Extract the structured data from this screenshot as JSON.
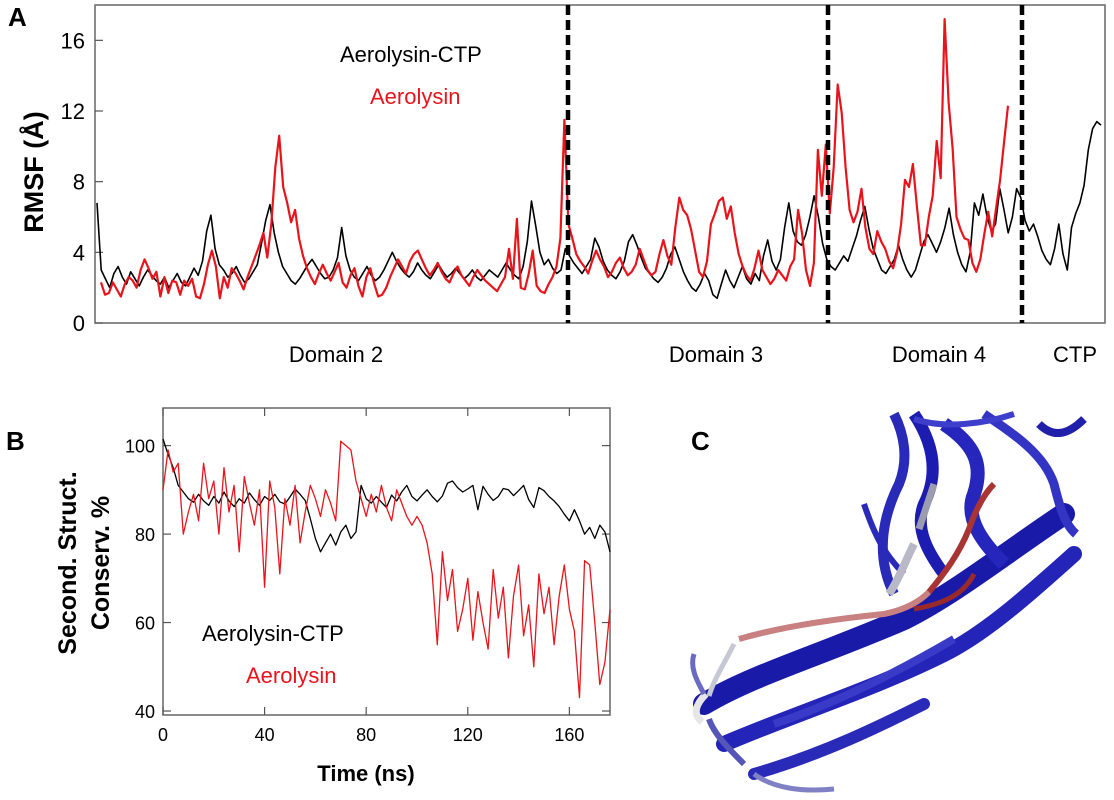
{
  "panels": {
    "a": "A",
    "b": "B",
    "c": "C"
  },
  "colors": {
    "aerolysin_ctp": "#000000",
    "aerolysin": "#e8141b"
  },
  "chart_data": [
    {
      "type": "line",
      "ylabel": "RMSF (Å)",
      "ylim": [
        0,
        18
      ],
      "yticks": [
        0,
        4,
        8,
        12,
        16
      ],
      "legend": [
        "Aerolysin-CTP",
        "Aerolysin"
      ],
      "regions": [
        "Domain 2",
        "Domain 3",
        "Domain 4",
        "CTP"
      ],
      "grid": false,
      "series": [
        {
          "name": "Aerolysin-CTP",
          "color": "#000000",
          "values": [
            6.8,
            3.0,
            2.5,
            2.0,
            2.8,
            3.2,
            2.6,
            2.2,
            2.9,
            2.5,
            2.1,
            2.6,
            3.0,
            2.7,
            2.4,
            2.2,
            2.6,
            2.0,
            2.4,
            2.8,
            2.3,
            2.1,
            2.6,
            3.1,
            2.7,
            3.5,
            5.2,
            6.1,
            4.2,
            3.3,
            3.0,
            2.6,
            2.8,
            3.2,
            2.7,
            2.3,
            2.5,
            2.9,
            3.3,
            4.5,
            5.8,
            6.7,
            5.1,
            4.0,
            3.2,
            2.8,
            2.4,
            2.2,
            2.5,
            2.9,
            3.3,
            3.6,
            3.2,
            2.8,
            2.5,
            2.6,
            3.0,
            3.7,
            5.4,
            3.8,
            3.0,
            2.6,
            2.4,
            2.8,
            3.2,
            2.7,
            2.4,
            2.6,
            3.0,
            3.5,
            4.0,
            3.5,
            3.1,
            2.8,
            2.6,
            2.9,
            3.4,
            3.0,
            2.7,
            2.5,
            2.9,
            3.3,
            2.9,
            2.6,
            2.8,
            3.1,
            2.8,
            2.5,
            2.7,
            3.0,
            2.6,
            2.4,
            2.7,
            3.0,
            2.8,
            2.6,
            3.0,
            3.4,
            3.0,
            2.7,
            2.5,
            3.2,
            4.6,
            6.9,
            5.5,
            4.0,
            3.3,
            3.6,
            3.1,
            2.8,
            3.0,
            4.2,
            3.8,
            3.4,
            3.1,
            2.8,
            3.2,
            3.6,
            4.8,
            4.3,
            3.5,
            3.0,
            2.7,
            2.5,
            2.9,
            3.5,
            4.6,
            5.0,
            4.4,
            3.7,
            3.1,
            2.8,
            2.5,
            2.3,
            2.6,
            3.1,
            3.9,
            4.3,
            3.6,
            2.9,
            2.4,
            2.0,
            1.8,
            2.2,
            2.8,
            2.4,
            1.6,
            1.4,
            2.2,
            3.0,
            2.4,
            2.0,
            2.6,
            3.2,
            2.5,
            2.2,
            2.8,
            2.4,
            3.8,
            4.7,
            3.5,
            3.0,
            3.6,
            5.4,
            6.8,
            5.2,
            4.6,
            4.4,
            5.0,
            6.0,
            7.2,
            6.0,
            4.5,
            3.6,
            3.2,
            3.0,
            3.4,
            3.8,
            3.5,
            4.2,
            4.9,
            5.8,
            6.6,
            5.3,
            4.2,
            3.6,
            3.0,
            2.8,
            3.2,
            3.6,
            4.4,
            3.6,
            3.0,
            2.6,
            3.0,
            3.8,
            4.6,
            5.0,
            4.5,
            4.0,
            4.6,
            5.4,
            6.5,
            5.0,
            4.0,
            3.3,
            2.9,
            4.0,
            6.8,
            6.1,
            7.3,
            6.0,
            5.2,
            5.6,
            7.6,
            6.4,
            5.1,
            6.0,
            7.6,
            7.1,
            5.8,
            5.2,
            5.6,
            4.9,
            4.1,
            3.6,
            3.3,
            4.2,
            5.6,
            3.9,
            3.0,
            5.4,
            6.2,
            6.8,
            7.8,
            9.8,
            11.0,
            11.4,
            11.2
          ]
        },
        {
          "name": "Aerolysin",
          "color": "#e8141b",
          "values": [
            2.3,
            1.6,
            1.7,
            2.3,
            1.9,
            1.5,
            2.2,
            2.6,
            2.4,
            2.0,
            3.0,
            3.6,
            3.1,
            2.5,
            2.9,
            1.5,
            2.6,
            1.7,
            2.4,
            2.3,
            1.6,
            2.4,
            2.1,
            2.5,
            1.5,
            1.4,
            2.2,
            3.3,
            4.1,
            3.2,
            1.4,
            2.6,
            2.0,
            3.1,
            2.8,
            2.4,
            1.9,
            2.6,
            3.2,
            3.8,
            4.4,
            5.1,
            3.7,
            5.6,
            8.8,
            10.6,
            7.7,
            6.8,
            5.7,
            6.4,
            4.8,
            3.8,
            3.1,
            2.6,
            2.2,
            2.8,
            3.3,
            2.8,
            2.4,
            2.9,
            3.4,
            2.3,
            2.0,
            2.7,
            3.1,
            2.1,
            1.5,
            2.6,
            3.1,
            2.2,
            1.5,
            1.6,
            2.0,
            2.6,
            3.1,
            3.6,
            3.2,
            2.8,
            3.5,
            3.9,
            4.1,
            3.6,
            3.1,
            2.7,
            3.0,
            3.4,
            2.9,
            2.5,
            2.3,
            2.8,
            3.2,
            2.7,
            2.4,
            2.1,
            2.6,
            3.0,
            2.7,
            2.4,
            2.2,
            2.0,
            1.8,
            2.2,
            2.6,
            4.2,
            2.5,
            5.9,
            2.0,
            1.9,
            2.8,
            4.1,
            2.1,
            1.8,
            1.7,
            2.2,
            2.6,
            3.2,
            4.8,
            11.5,
            5.6,
            4.8,
            3.9,
            3.5,
            3.2,
            2.8,
            3.5,
            4.1,
            3.6,
            3.2,
            2.6,
            2.9,
            3.4,
            3.7,
            3.1,
            2.7,
            2.9,
            3.3,
            4.2,
            3.6,
            3.0,
            2.7,
            2.9,
            3.9,
            4.7,
            3.8,
            3.3,
            5.4,
            7.1,
            6.4,
            6.1,
            5.3,
            4.1,
            2.9,
            2.6,
            3.5,
            5.6,
            6.2,
            6.9,
            7.1,
            5.9,
            6.6,
            5.1,
            3.9,
            3.2,
            2.7,
            2.4,
            3.1,
            4.1,
            3.0,
            2.6,
            2.2,
            2.5,
            3.0,
            2.7,
            2.4,
            3.2,
            3.6,
            6.4,
            5.1,
            3.0,
            2.1,
            3.4,
            9.8,
            7.2,
            10.1,
            6.2,
            8.8,
            13.5,
            11.9,
            8.8,
            6.4,
            5.7,
            6.3,
            7.6,
            5.4,
            4.2,
            3.9,
            5.2,
            4.6,
            4.2,
            3.5,
            3.1,
            4.0,
            5.6,
            8.1,
            7.7,
            9.0,
            6.6,
            4.4,
            4.4,
            6.0,
            7.2,
            10.3,
            8.2,
            17.2,
            12.5,
            9.9,
            6.0,
            5.3,
            4.8,
            4.7,
            3.4,
            2.9,
            3.6,
            5.0,
            6.3,
            4.9,
            6.5,
            8.1,
            10.2,
            12.3
          ]
        }
      ]
    },
    {
      "type": "line",
      "xlabel": "Time (ns)",
      "ylabel": "Second. Struct. Conserv. %",
      "xlim": [
        0,
        176
      ],
      "ylim": [
        39.1,
        108.5
      ],
      "xticks": [
        0,
        40,
        80,
        120,
        160
      ],
      "yticks": [
        40,
        60,
        80,
        100
      ],
      "legend": [
        "Aerolysin-CTP",
        "Aerolysin"
      ],
      "grid": false,
      "series": [
        {
          "name": "Aerolysin-CTP",
          "color": "#000000",
          "x": [
            0,
            2,
            4,
            6,
            8,
            10,
            12,
            14,
            16,
            18,
            20,
            22,
            24,
            26,
            28,
            30,
            32,
            34,
            36,
            38,
            40,
            42,
            44,
            46,
            48,
            50,
            52,
            54,
            56,
            58,
            60,
            62,
            64,
            66,
            68,
            70,
            72,
            74,
            76,
            78,
            80,
            82,
            84,
            86,
            88,
            90,
            92,
            94,
            96,
            98,
            100,
            102,
            104,
            106,
            108,
            110,
            112,
            114,
            116,
            118,
            120,
            122,
            124,
            126,
            128,
            130,
            132,
            134,
            136,
            138,
            140,
            142,
            144,
            146,
            148,
            150,
            152,
            154,
            156,
            158,
            160,
            162,
            164,
            166,
            168,
            170,
            172,
            174,
            176
          ],
          "values": [
            101.5,
            98.0,
            95.0,
            91.0,
            89.5,
            88.0,
            87.2,
            89.0,
            87.5,
            86.5,
            88.5,
            87.0,
            89.5,
            87.5,
            86.2,
            88.0,
            87.0,
            89.3,
            87.8,
            86.5,
            88.5,
            87.6,
            89.0,
            87.3,
            86.8,
            88.4,
            90.2,
            89.0,
            87.6,
            83.5,
            79.0,
            76.0,
            78.0,
            80.0,
            77.5,
            80.5,
            82.0,
            79.0,
            80.5,
            91.0,
            88.0,
            87.0,
            88.5,
            87.2,
            86.0,
            88.8,
            87.5,
            89.5,
            91.0,
            88.5,
            87.5,
            88.8,
            90.0,
            88.5,
            87.3,
            88.6,
            91.5,
            92.0,
            90.5,
            89.5,
            90.2,
            91.0,
            85.5,
            90.8,
            89.0,
            87.6,
            88.5,
            90.3,
            90.0,
            88.7,
            89.8,
            91.0,
            87.8,
            86.0,
            90.5,
            89.8,
            88.5,
            87.5,
            86.2,
            84.5,
            83.0,
            85.5,
            83.0,
            80.0,
            81.5,
            79.0,
            82.0,
            80.5,
            76.0
          ]
        },
        {
          "name": "Aerolysin",
          "color": "#e8141b",
          "x": [
            0,
            2,
            4,
            6,
            8,
            10,
            12,
            14,
            16,
            18,
            20,
            22,
            24,
            26,
            28,
            30,
            32,
            34,
            36,
            38,
            40,
            42,
            44,
            46,
            48,
            50,
            52,
            54,
            56,
            58,
            60,
            62,
            64,
            66,
            68,
            70,
            72,
            74,
            76,
            78,
            80,
            82,
            84,
            86,
            88,
            90,
            92,
            94,
            96,
            98,
            100,
            102,
            104,
            106,
            108,
            110,
            112,
            114,
            116,
            118,
            120,
            122,
            124,
            126,
            128,
            130,
            132,
            134,
            136,
            138,
            140,
            142,
            144,
            146,
            148,
            150,
            152,
            154,
            156,
            158,
            160,
            162,
            164,
            166,
            168,
            170,
            172,
            174,
            176
          ],
          "values": [
            90.0,
            99.0,
            94.0,
            96.0,
            80.0,
            85.0,
            89.0,
            83.0,
            96.0,
            88.0,
            92.0,
            80.0,
            95.0,
            85.0,
            91.0,
            76.0,
            93.0,
            87.0,
            82.0,
            90.0,
            68.0,
            92.0,
            86.0,
            71.0,
            88.0,
            82.0,
            91.0,
            78.0,
            85.0,
            91.0,
            88.0,
            84.0,
            90.0,
            87.0,
            83.0,
            101.0,
            100.0,
            99.0,
            92.0,
            88.0,
            84.0,
            89.0,
            85.0,
            91.0,
            86.0,
            83.0,
            90.0,
            87.0,
            84.0,
            82.0,
            84.0,
            82.0,
            78.0,
            71.0,
            55.0,
            76.0,
            65.0,
            72.0,
            58.0,
            63.0,
            70.0,
            56.0,
            67.0,
            60.0,
            54.0,
            72.0,
            61.0,
            68.0,
            52.0,
            66.0,
            73.0,
            57.0,
            64.0,
            50.0,
            71.0,
            62.0,
            68.0,
            55.0,
            66.0,
            73.0,
            63.0,
            58.0,
            43.0,
            74.0,
            73.0,
            60.0,
            46.0,
            51.0,
            63.0
          ]
        }
      ]
    }
  ]
}
